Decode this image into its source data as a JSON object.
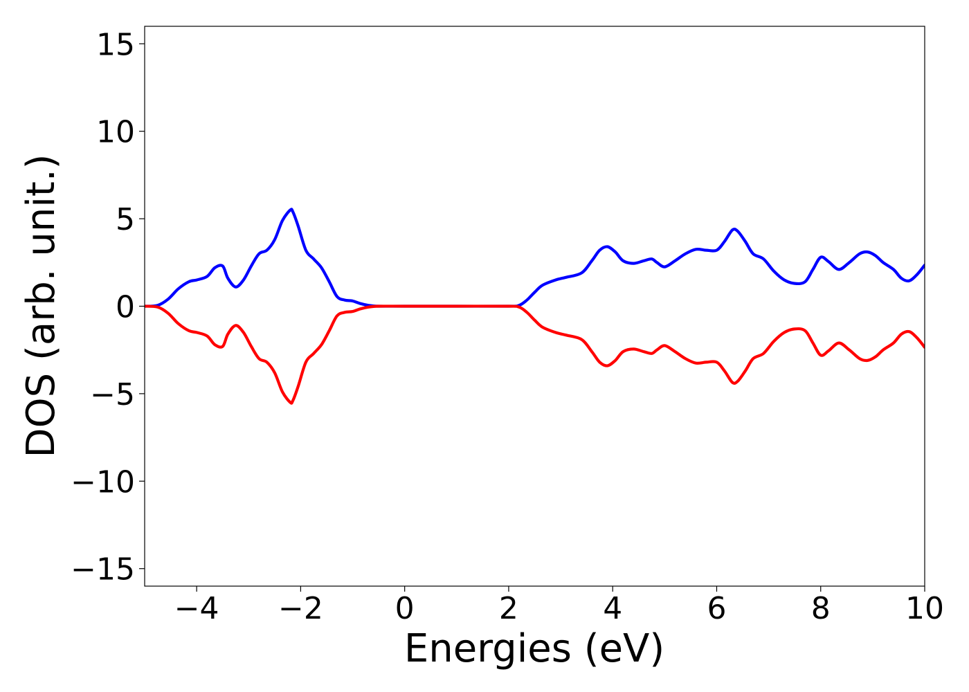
{
  "chart_data": {
    "type": "line",
    "title": "",
    "xlabel": "Energies (eV)",
    "ylabel": "DOS (arb. unit.)",
    "xlim": [
      -5,
      10
    ],
    "ylim": [
      -16,
      16
    ],
    "grid": false,
    "xticks": [
      -4,
      -2,
      0,
      2,
      4,
      6,
      8,
      10
    ],
    "xtick_labels": [
      "−4",
      "−2",
      "0",
      "2",
      "4",
      "6",
      "8",
      "10"
    ],
    "yticks": [
      15,
      10,
      5,
      0,
      -5,
      -10,
      -15
    ],
    "ytick_labels": [
      "15",
      "10",
      "5",
      "0",
      "−5",
      "−10",
      "−15"
    ],
    "series": [
      {
        "color": "#0000ff",
        "x": [
          -5.0,
          -4.75,
          -4.55,
          -4.35,
          -4.15,
          -4.0,
          -3.8,
          -3.65,
          -3.5,
          -3.4,
          -3.25,
          -3.1,
          -2.95,
          -2.8,
          -2.65,
          -2.5,
          -2.35,
          -2.2,
          -2.15,
          -2.05,
          -1.9,
          -1.75,
          -1.6,
          -1.45,
          -1.3,
          -1.15,
          -1.0,
          -0.85,
          -0.7,
          -0.5,
          0.0,
          1.0,
          2.0,
          2.2,
          2.35,
          2.5,
          2.65,
          2.9,
          3.1,
          3.4,
          3.6,
          3.75,
          3.9,
          4.05,
          4.2,
          4.4,
          4.6,
          4.75,
          4.85,
          5.0,
          5.2,
          5.4,
          5.6,
          5.8,
          6.0,
          6.15,
          6.3,
          6.4,
          6.55,
          6.7,
          6.9,
          7.1,
          7.3,
          7.5,
          7.7,
          7.85,
          8.0,
          8.15,
          8.35,
          8.55,
          8.75,
          8.9,
          9.05,
          9.2,
          9.4,
          9.55,
          9.7,
          9.85,
          10.0
        ],
        "values": [
          0.0,
          0.05,
          0.4,
          1.0,
          1.4,
          1.5,
          1.7,
          2.2,
          2.3,
          1.6,
          1.1,
          1.5,
          2.3,
          3.0,
          3.2,
          3.8,
          4.9,
          5.5,
          5.4,
          4.6,
          3.2,
          2.7,
          2.2,
          1.4,
          0.55,
          0.35,
          0.3,
          0.15,
          0.05,
          0.0,
          0.0,
          0.0,
          0.0,
          0.05,
          0.35,
          0.8,
          1.2,
          1.5,
          1.65,
          1.9,
          2.6,
          3.2,
          3.4,
          3.1,
          2.6,
          2.45,
          2.6,
          2.7,
          2.5,
          2.25,
          2.6,
          3.0,
          3.25,
          3.2,
          3.2,
          3.7,
          4.35,
          4.3,
          3.7,
          3.0,
          2.7,
          2.0,
          1.5,
          1.3,
          1.4,
          2.1,
          2.8,
          2.55,
          2.1,
          2.5,
          3.0,
          3.1,
          2.9,
          2.5,
          2.1,
          1.6,
          1.45,
          1.8,
          2.35
        ]
      },
      {
        "color": "#ff0000",
        "x": [
          -5.0,
          -4.75,
          -4.55,
          -4.35,
          -4.15,
          -4.0,
          -3.8,
          -3.65,
          -3.5,
          -3.4,
          -3.25,
          -3.1,
          -2.95,
          -2.8,
          -2.65,
          -2.5,
          -2.35,
          -2.2,
          -2.15,
          -2.05,
          -1.9,
          -1.75,
          -1.6,
          -1.45,
          -1.3,
          -1.15,
          -1.0,
          -0.85,
          -0.7,
          -0.5,
          0.0,
          1.0,
          2.0,
          2.2,
          2.35,
          2.5,
          2.65,
          2.9,
          3.1,
          3.4,
          3.6,
          3.75,
          3.9,
          4.05,
          4.2,
          4.4,
          4.6,
          4.75,
          4.85,
          5.0,
          5.2,
          5.4,
          5.6,
          5.8,
          6.0,
          6.15,
          6.3,
          6.4,
          6.55,
          6.7,
          6.9,
          7.1,
          7.3,
          7.5,
          7.7,
          7.85,
          8.0,
          8.15,
          8.35,
          8.55,
          8.75,
          8.9,
          9.05,
          9.2,
          9.4,
          9.55,
          9.7,
          9.85,
          10.0
        ],
        "values": [
          0.0,
          -0.05,
          -0.4,
          -1.0,
          -1.4,
          -1.5,
          -1.7,
          -2.2,
          -2.3,
          -1.6,
          -1.1,
          -1.5,
          -2.3,
          -3.0,
          -3.2,
          -3.8,
          -4.9,
          -5.5,
          -5.4,
          -4.6,
          -3.2,
          -2.7,
          -2.2,
          -1.4,
          -0.55,
          -0.35,
          -0.3,
          -0.15,
          -0.05,
          0.0,
          0.0,
          0.0,
          0.0,
          -0.05,
          -0.35,
          -0.8,
          -1.2,
          -1.5,
          -1.65,
          -1.9,
          -2.6,
          -3.2,
          -3.4,
          -3.1,
          -2.6,
          -2.45,
          -2.6,
          -2.7,
          -2.5,
          -2.25,
          -2.6,
          -3.0,
          -3.25,
          -3.2,
          -3.2,
          -3.7,
          -4.35,
          -4.3,
          -3.7,
          -3.0,
          -2.7,
          -2.0,
          -1.5,
          -1.3,
          -1.4,
          -2.1,
          -2.8,
          -2.55,
          -2.1,
          -2.5,
          -3.0,
          -3.1,
          -2.9,
          -2.5,
          -2.1,
          -1.6,
          -1.45,
          -1.8,
          -2.35
        ]
      }
    ]
  }
}
